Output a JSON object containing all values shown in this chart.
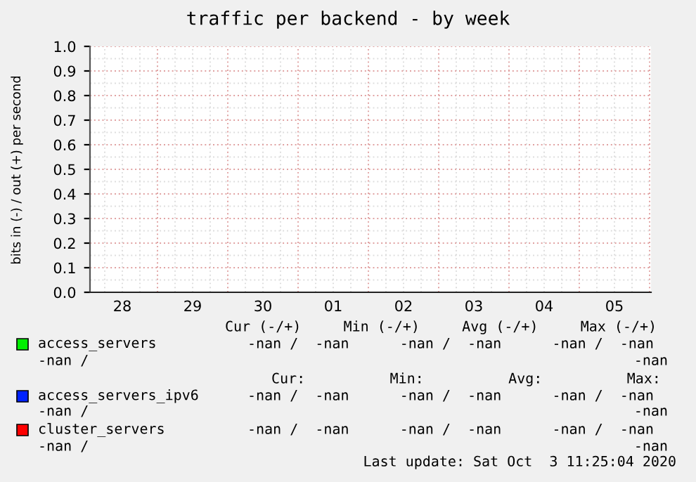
{
  "chart_data": {
    "type": "line",
    "title": "traffic per backend - by week",
    "ylabel": "bits in (-) / out (+) per second",
    "categories": [
      "28",
      "29",
      "30",
      "01",
      "02",
      "03",
      "04",
      "05"
    ],
    "series": [
      {
        "name": "access_servers",
        "color": "#00ee00",
        "values": [
          null,
          null,
          null,
          null,
          null,
          null,
          null,
          null
        ]
      },
      {
        "name": "access_servers_ipv6",
        "color": "#0022ff",
        "values": [
          null,
          null,
          null,
          null,
          null,
          null,
          null,
          null
        ]
      },
      {
        "name": "cluster_servers",
        "color": "#ff0000",
        "values": [
          null,
          null,
          null,
          null,
          null,
          null,
          null,
          null
        ]
      }
    ],
    "ylim": [
      0,
      1
    ],
    "yticks": [
      {
        "value": 0,
        "label": "0.0"
      },
      {
        "value": 0.1,
        "label": "0.1"
      },
      {
        "value": 0.2,
        "label": "0.2"
      },
      {
        "value": 0.3,
        "label": "0.3"
      },
      {
        "value": 0.4,
        "label": "0.4"
      },
      {
        "value": 0.5,
        "label": "0.5"
      },
      {
        "value": 0.6,
        "label": "0.6"
      },
      {
        "value": 0.7,
        "label": "0.7"
      },
      {
        "value": 0.8,
        "label": "0.8"
      },
      {
        "value": 0.9,
        "label": "0.9"
      },
      {
        "value": 1,
        "label": "1.0"
      }
    ],
    "grid": true,
    "legend": "bottom",
    "annotations": [
      "Cur (-/+)     Min (-/+)     Avg (-/+)     Max (-/+)",
      "-nan /  -nan      -nan /  -nan      -nan /  -nan",
      "-nan /",
      "-nan",
      "Cur:          Min:          Avg:          Max:",
      "-nan /  -nan      -nan /  -nan      -nan /  -nan",
      "-nan /",
      "-nan",
      "-nan /  -nan      -nan /  -nan      -nan /  -nan",
      "-nan /",
      "-nan",
      "Last update: Sat Oct  3 11:25:04 2020"
    ]
  }
}
